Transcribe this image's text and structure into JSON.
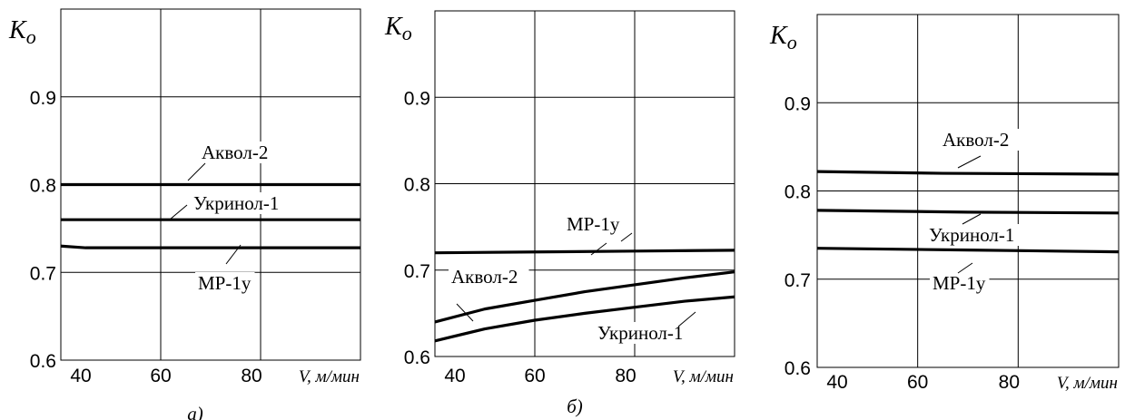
{
  "chart_data": [
    {
      "type": "line",
      "caption": "а)",
      "ylabel": "K",
      "ylabel_sub": "o",
      "xlabel": "V, м/мин",
      "x_ticks": [
        "40",
        "60",
        "80"
      ],
      "y_ticks": [
        "0.6",
        "0.7",
        "0.8",
        "0.9"
      ],
      "xlim": [
        40,
        100
      ],
      "ylim": [
        0.6,
        1.0
      ],
      "grid": true,
      "series": [
        {
          "name": "Аквол-2",
          "x": [
            40,
            100
          ],
          "y": [
            0.8,
            0.8
          ]
        },
        {
          "name": "Укринол-1",
          "x": [
            40,
            100
          ],
          "y": [
            0.76,
            0.76
          ]
        },
        {
          "name": "МР-1у",
          "x": [
            40,
            45,
            100
          ],
          "y": [
            0.73,
            0.728,
            0.728
          ]
        }
      ]
    },
    {
      "type": "line",
      "caption": "б)",
      "ylabel": "K",
      "ylabel_sub": "o",
      "xlabel": "V, м/мин",
      "x_ticks": [
        "40",
        "60",
        "80"
      ],
      "y_ticks": [
        "0.6",
        "0.7",
        "0.8",
        "0.9"
      ],
      "xlim": [
        40,
        100
      ],
      "ylim": [
        0.6,
        1.0
      ],
      "grid": true,
      "series": [
        {
          "name": "МР-1у",
          "x": [
            40,
            60,
            80,
            100
          ],
          "y": [
            0.72,
            0.721,
            0.722,
            0.723
          ]
        },
        {
          "name": "Аквол-2",
          "x": [
            40,
            50,
            60,
            70,
            80,
            90,
            100
          ],
          "y": [
            0.64,
            0.655,
            0.665,
            0.675,
            0.683,
            0.691,
            0.698
          ]
        },
        {
          "name": "Укринол-1",
          "x": [
            40,
            50,
            60,
            70,
            80,
            90,
            100
          ],
          "y": [
            0.618,
            0.632,
            0.642,
            0.65,
            0.657,
            0.664,
            0.669
          ]
        }
      ]
    },
    {
      "type": "line",
      "caption": "",
      "ylabel": "K",
      "ylabel_sub": "o",
      "xlabel": "V, м/мин",
      "x_ticks": [
        "40",
        "60",
        "80"
      ],
      "y_ticks": [
        "0.6",
        "0.7",
        "0.8",
        "0.9"
      ],
      "xlim": [
        40,
        100
      ],
      "ylim": [
        0.6,
        1.0
      ],
      "grid": true,
      "series": [
        {
          "name": "Аквол-2",
          "x": [
            40,
            65,
            100
          ],
          "y": [
            0.822,
            0.82,
            0.819
          ]
        },
        {
          "name": "Укринол-1",
          "x": [
            40,
            70,
            100
          ],
          "y": [
            0.778,
            0.776,
            0.775
          ]
        },
        {
          "name": "МР-1у",
          "x": [
            40,
            70,
            100
          ],
          "y": [
            0.735,
            0.733,
            0.731
          ]
        }
      ]
    }
  ]
}
